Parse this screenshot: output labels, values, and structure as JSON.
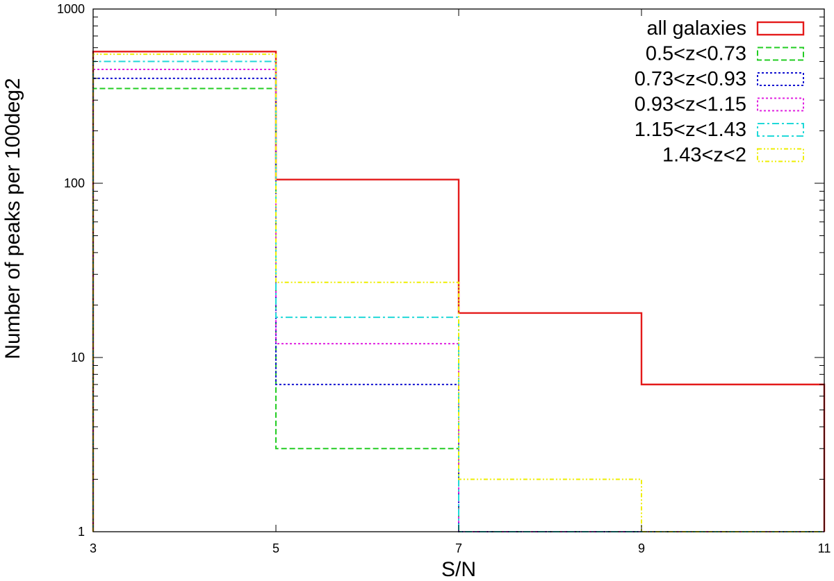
{
  "chart_data": {
    "type": "bar",
    "title": "",
    "xlabel": "S/N",
    "ylabel": "Number of peaks per 100deg2",
    "xlim": [
      3,
      11
    ],
    "ylim": [
      1,
      1000
    ],
    "yscale": "log",
    "grid": false,
    "legend_position": "top-right",
    "bin_edges": [
      3,
      5,
      7,
      9,
      11
    ],
    "x_ticks": [
      "3",
      "5",
      "7",
      "9",
      "11"
    ],
    "y_ticks": [
      "1",
      "10",
      "100",
      "1000"
    ],
    "series": [
      {
        "name": "all galaxies",
        "color": "#e41a1a",
        "dash": "solid",
        "values": [
          570,
          105,
          18,
          7
        ]
      },
      {
        "name": "0.5<z<0.73",
        "color": "#22cc22",
        "dash": "dashed",
        "values": [
          350,
          3,
          1,
          1
        ]
      },
      {
        "name": "0.73<z<0.93",
        "color": "#1010d0",
        "dash": "dotted",
        "values": [
          400,
          7,
          1,
          1
        ]
      },
      {
        "name": "0.93<z<1.15",
        "color": "#e020e0",
        "dash": "dotted",
        "values": [
          450,
          12,
          1,
          1
        ]
      },
      {
        "name": "1.15<z<1.43",
        "color": "#20d8d8",
        "dash": "dashdot",
        "values": [
          500,
          17,
          1,
          1
        ]
      },
      {
        "name": "1.43<z<2",
        "color": "#eeee00",
        "dash": "dashdotdot",
        "values": [
          550,
          27,
          2,
          1
        ]
      }
    ]
  }
}
